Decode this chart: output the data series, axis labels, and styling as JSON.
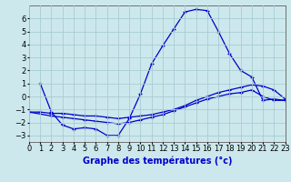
{
  "xlabel": "Graphe des températures (°c)",
  "bg_color": "#cce8ec",
  "grid_color": "#a8ccd4",
  "line_color": "#0000cc",
  "xlim": [
    0,
    23
  ],
  "ylim": [
    -3.5,
    7.0
  ],
  "xticks": [
    0,
    1,
    2,
    3,
    4,
    5,
    6,
    7,
    8,
    9,
    10,
    11,
    12,
    13,
    14,
    15,
    16,
    17,
    18,
    19,
    20,
    21,
    22,
    23
  ],
  "yticks": [
    -3,
    -2,
    -1,
    0,
    1,
    2,
    3,
    4,
    5,
    6
  ],
  "curve1_x": [
    1,
    2,
    3,
    4,
    5,
    6,
    7,
    8,
    9,
    10,
    11,
    12,
    13,
    14,
    15,
    16,
    17,
    18,
    19,
    20,
    21,
    22,
    23
  ],
  "curve1_y": [
    1.0,
    -1.2,
    -2.2,
    -2.5,
    -2.4,
    -2.5,
    -3.0,
    -3.0,
    -1.7,
    0.2,
    2.5,
    3.9,
    5.2,
    6.5,
    6.7,
    6.6,
    5.0,
    3.3,
    2.0,
    1.5,
    -0.3,
    -0.2,
    -0.3
  ],
  "curve2_x": [
    0,
    1,
    2,
    3,
    4,
    5,
    6,
    7,
    8,
    9,
    10,
    11,
    12,
    13,
    14,
    15,
    16,
    17,
    18,
    19,
    20,
    21,
    22,
    23
  ],
  "curve2_y": [
    -1.2,
    -1.2,
    -1.3,
    -1.3,
    -1.4,
    -1.5,
    -1.5,
    -1.6,
    -1.7,
    -1.6,
    -1.5,
    -1.4,
    -1.2,
    -1.0,
    -0.7,
    -0.3,
    0.0,
    0.3,
    0.5,
    0.7,
    0.9,
    0.8,
    0.5,
    -0.2
  ],
  "curve3_x": [
    0,
    2,
    3,
    4,
    5,
    6,
    7,
    8,
    9,
    10,
    11,
    12,
    13,
    14,
    15,
    16,
    17,
    18,
    19,
    20,
    21,
    22,
    23
  ],
  "curve3_y": [
    -1.2,
    -1.5,
    -1.6,
    -1.7,
    -1.8,
    -1.9,
    -2.0,
    -2.1,
    -2.0,
    -1.8,
    -1.6,
    -1.4,
    -1.1,
    -0.8,
    -0.5,
    -0.2,
    0.0,
    0.2,
    0.3,
    0.5,
    0.0,
    -0.3,
    -0.3
  ],
  "xlabel_fontsize": 7,
  "tick_fontsize": 6
}
